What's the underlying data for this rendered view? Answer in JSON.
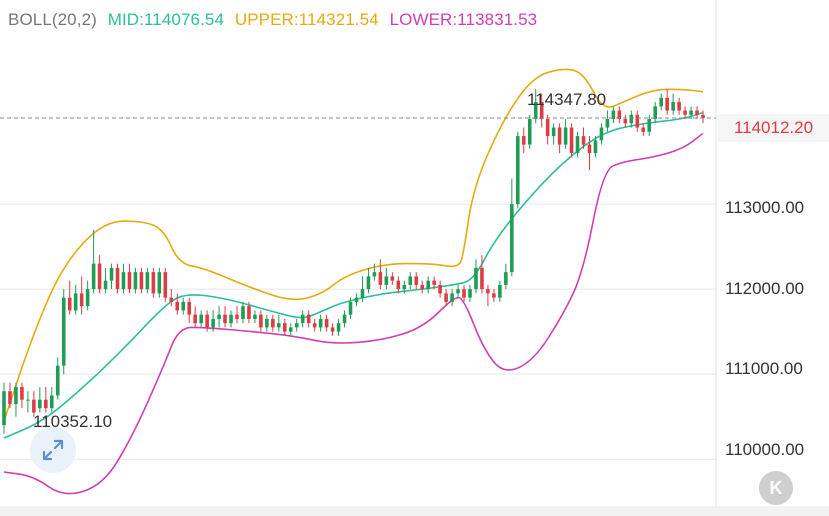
{
  "legend": {
    "title": "BOLL(20,2)",
    "mid": "MID:114076.54",
    "upper": "UPPER:114321.54",
    "lower": "LOWER:113831.53"
  },
  "current_price": "114012.20",
  "high_marker": "114347.80",
  "low_marker": "110352.10",
  "colors": {
    "up": "#1f9d55",
    "down": "#dc3c45",
    "mid": "#2bbf9b",
    "upper": "#e6aa10",
    "lower": "#cf3fb3",
    "grid": "#e6e6e6",
    "price_line": "#888888"
  },
  "icons": {
    "expand": "expand-arrows-icon",
    "logo": "k-logo-icon",
    "logo_text": "K"
  },
  "chart_data": {
    "type": "candlestick",
    "indicator": "BOLL(20,2)",
    "y_ticks": [
      "113000.00",
      "112000.00",
      "111000.00",
      "110000.00"
    ],
    "y_tick_values": [
      113000,
      112000,
      111000,
      110000
    ],
    "ylim": [
      109450,
      115400
    ],
    "current_price": 114012.2,
    "high_label": 114347.8,
    "low_label": 110352.1,
    "grid": true,
    "candles": [
      [
        110400,
        110800,
        110300,
        110900
      ],
      [
        110800,
        110650,
        110600,
        110900
      ],
      [
        110650,
        110850,
        110500,
        110900
      ],
      [
        110850,
        110700,
        110600,
        110900
      ],
      [
        110700,
        110700,
        110550,
        110800
      ],
      [
        110700,
        110550,
        110500,
        110800
      ],
      [
        110600,
        110700,
        110550,
        110850
      ],
      [
        110700,
        110600,
        110550,
        110850
      ],
      [
        110600,
        110750,
        110550,
        110850
      ],
      [
        110750,
        111100,
        110700,
        111200
      ],
      [
        111100,
        111900,
        111000,
        112000
      ],
      [
        111900,
        111750,
        111700,
        112100
      ],
      [
        111750,
        111950,
        111700,
        112050
      ],
      [
        111950,
        111800,
        111700,
        112150
      ],
      [
        111800,
        112000,
        111750,
        112100
      ],
      [
        112000,
        112300,
        111950,
        112700
      ],
      [
        112300,
        112000,
        111950,
        112400
      ],
      [
        112000,
        112100,
        111950,
        112250
      ],
      [
        112100,
        112250,
        112000,
        112300
      ],
      [
        112250,
        112000,
        111950,
        112300
      ],
      [
        112000,
        112200,
        111950,
        112300
      ],
      [
        112200,
        112000,
        111950,
        112300
      ],
      [
        112000,
        112200,
        111950,
        112250
      ],
      [
        112200,
        112000,
        111950,
        112250
      ],
      [
        112000,
        112200,
        111950,
        112250
      ],
      [
        112200,
        111950,
        111900,
        112250
      ],
      [
        111950,
        112200,
        111900,
        112250
      ],
      [
        112200,
        111900,
        111850,
        112250
      ],
      [
        111900,
        111850,
        111800,
        112000
      ],
      [
        111850,
        111750,
        111700,
        111950
      ],
      [
        111750,
        111850,
        111700,
        111900
      ],
      [
        111850,
        111700,
        111600,
        111900
      ],
      [
        111700,
        111600,
        111550,
        111800
      ],
      [
        111600,
        111700,
        111550,
        111750
      ],
      [
        111700,
        111550,
        111500,
        111750
      ],
      [
        111550,
        111650,
        111500,
        111750
      ],
      [
        111650,
        111700,
        111550,
        111800
      ],
      [
        111700,
        111600,
        111550,
        111800
      ],
      [
        111600,
        111700,
        111550,
        111750
      ],
      [
        111700,
        111650,
        111600,
        111800
      ],
      [
        111650,
        111800,
        111600,
        111850
      ],
      [
        111800,
        111650,
        111600,
        111850
      ],
      [
        111650,
        111700,
        111600,
        111750
      ],
      [
        111700,
        111550,
        111500,
        111750
      ],
      [
        111550,
        111650,
        111500,
        111700
      ],
      [
        111650,
        111550,
        111500,
        111700
      ],
      [
        111550,
        111600,
        111500,
        111700
      ],
      [
        111600,
        111500,
        111450,
        111650
      ],
      [
        111500,
        111550,
        111450,
        111600
      ],
      [
        111550,
        111600,
        111500,
        111650
      ],
      [
        111600,
        111700,
        111550,
        111750
      ],
      [
        111700,
        111600,
        111550,
        111750
      ],
      [
        111600,
        111550,
        111500,
        111650
      ],
      [
        111550,
        111650,
        111500,
        111700
      ],
      [
        111650,
        111550,
        111500,
        111700
      ],
      [
        111550,
        111500,
        111450,
        111600
      ],
      [
        111500,
        111600,
        111450,
        111650
      ],
      [
        111600,
        111700,
        111550,
        111750
      ],
      [
        111700,
        111850,
        111650,
        111900
      ],
      [
        111850,
        111900,
        111800,
        111950
      ],
      [
        111900,
        112000,
        111850,
        112150
      ],
      [
        112000,
        112150,
        111950,
        112250
      ],
      [
        112150,
        112200,
        112100,
        112300
      ],
      [
        112200,
        112050,
        112000,
        112350
      ],
      [
        112050,
        112150,
        112000,
        112250
      ],
      [
        112150,
        112100,
        112050,
        112200
      ],
      [
        112100,
        112000,
        111950,
        112150
      ],
      [
        112000,
        112050,
        111950,
        112100
      ],
      [
        112050,
        112150,
        112000,
        112200
      ],
      [
        112150,
        112050,
        112000,
        112200
      ],
      [
        112050,
        112000,
        111950,
        112100
      ],
      [
        112000,
        112100,
        111950,
        112150
      ],
      [
        112100,
        112050,
        112000,
        112150
      ],
      [
        112050,
        111950,
        111900,
        112100
      ],
      [
        111950,
        111850,
        111800,
        112000
      ],
      [
        111850,
        111950,
        111800,
        112000
      ],
      [
        111950,
        112000,
        111900,
        112050
      ],
      [
        112000,
        111900,
        111850,
        112050
      ],
      [
        111900,
        112000,
        111850,
        112050
      ],
      [
        112000,
        112250,
        111950,
        112350
      ],
      [
        112250,
        112000,
        111950,
        112400
      ],
      [
        112000,
        111950,
        111800,
        112050
      ],
      [
        111950,
        111900,
        111850,
        112000
      ],
      [
        111900,
        112050,
        111850,
        112100
      ],
      [
        112050,
        112200,
        112000,
        112300
      ],
      [
        112200,
        113000,
        112150,
        113300
      ],
      [
        113000,
        113800,
        112950,
        113850
      ],
      [
        113800,
        113700,
        113600,
        113900
      ],
      [
        113700,
        114000,
        113650,
        114050
      ],
      [
        114000,
        114200,
        113950,
        114350
      ],
      [
        114200,
        114000,
        113900,
        114300
      ],
      [
        114000,
        113800,
        113700,
        114050
      ],
      [
        113800,
        113900,
        113700,
        113950
      ],
      [
        113900,
        113700,
        113600,
        113950
      ],
      [
        113700,
        113900,
        113650,
        114000
      ],
      [
        113900,
        113600,
        113550,
        113950
      ],
      [
        113600,
        113800,
        113550,
        113850
      ],
      [
        113800,
        113700,
        113650,
        113900
      ],
      [
        113700,
        113600,
        113400,
        113800
      ],
      [
        113600,
        113750,
        113550,
        113800
      ],
      [
        113750,
        113900,
        113700,
        113950
      ],
      [
        113900,
        114000,
        113850,
        114100
      ],
      [
        114000,
        114100,
        113950,
        114150
      ],
      [
        114100,
        114000,
        113950,
        114150
      ],
      [
        114000,
        113950,
        113900,
        114050
      ],
      [
        113950,
        114050,
        113900,
        114100
      ],
      [
        114050,
        113900,
        113850,
        114100
      ],
      [
        113900,
        113850,
        113800,
        113950
      ],
      [
        113850,
        114000,
        113800,
        114050
      ],
      [
        114000,
        114150,
        113950,
        114200
      ],
      [
        114150,
        114250,
        114100,
        114300
      ],
      [
        114250,
        114100,
        114050,
        114350
      ],
      [
        114100,
        114200,
        114050,
        114300
      ],
      [
        114200,
        114100,
        114050,
        114250
      ],
      [
        114100,
        114050,
        114000,
        114150
      ],
      [
        114050,
        114100,
        114000,
        114150
      ],
      [
        114100,
        114050,
        114000,
        114150
      ],
      [
        114050,
        114012,
        113950,
        114100
      ]
    ],
    "mid": [
      [
        0,
        110250
      ],
      [
        40,
        110450
      ],
      [
        80,
        110850
      ],
      [
        120,
        111300
      ],
      [
        160,
        111800
      ],
      [
        180,
        111950
      ],
      [
        220,
        111900
      ],
      [
        280,
        111700
      ],
      [
        300,
        111650
      ],
      [
        320,
        111750
      ],
      [
        340,
        111850
      ],
      [
        380,
        111950
      ],
      [
        420,
        112000
      ],
      [
        450,
        112050
      ],
      [
        470,
        112100
      ],
      [
        490,
        112550
      ],
      [
        520,
        113000
      ],
      [
        560,
        113500
      ],
      [
        600,
        113850
      ],
      [
        640,
        113950
      ],
      [
        680,
        114000
      ],
      [
        700,
        114076.54
      ]
    ],
    "upper": [
      [
        0,
        110450
      ],
      [
        30,
        111500
      ],
      [
        60,
        112300
      ],
      [
        100,
        112800
      ],
      [
        140,
        112800
      ],
      [
        160,
        112700
      ],
      [
        175,
        112300
      ],
      [
        200,
        112250
      ],
      [
        250,
        112000
      ],
      [
        290,
        111850
      ],
      [
        320,
        111950
      ],
      [
        340,
        112150
      ],
      [
        380,
        112300
      ],
      [
        430,
        112300
      ],
      [
        455,
        112250
      ],
      [
        460,
        112400
      ],
      [
        470,
        113200
      ],
      [
        500,
        114000
      ],
      [
        530,
        114500
      ],
      [
        560,
        114600
      ],
      [
        580,
        114550
      ],
      [
        600,
        114100
      ],
      [
        620,
        114200
      ],
      [
        650,
        114350
      ],
      [
        680,
        114350
      ],
      [
        700,
        114321.54
      ]
    ],
    "lower": [
      [
        0,
        109850
      ],
      [
        30,
        109800
      ],
      [
        60,
        109550
      ],
      [
        100,
        109700
      ],
      [
        130,
        110300
      ],
      [
        160,
        111100
      ],
      [
        175,
        111550
      ],
      [
        200,
        111550
      ],
      [
        250,
        111500
      ],
      [
        290,
        111450
      ],
      [
        330,
        111350
      ],
      [
        380,
        111400
      ],
      [
        420,
        111550
      ],
      [
        450,
        111900
      ],
      [
        460,
        111900
      ],
      [
        480,
        111300
      ],
      [
        500,
        111000
      ],
      [
        530,
        111150
      ],
      [
        560,
        111700
      ],
      [
        580,
        112200
      ],
      [
        600,
        113400
      ],
      [
        620,
        113500
      ],
      [
        650,
        113550
      ],
      [
        680,
        113650
      ],
      [
        700,
        113831.53
      ]
    ]
  }
}
